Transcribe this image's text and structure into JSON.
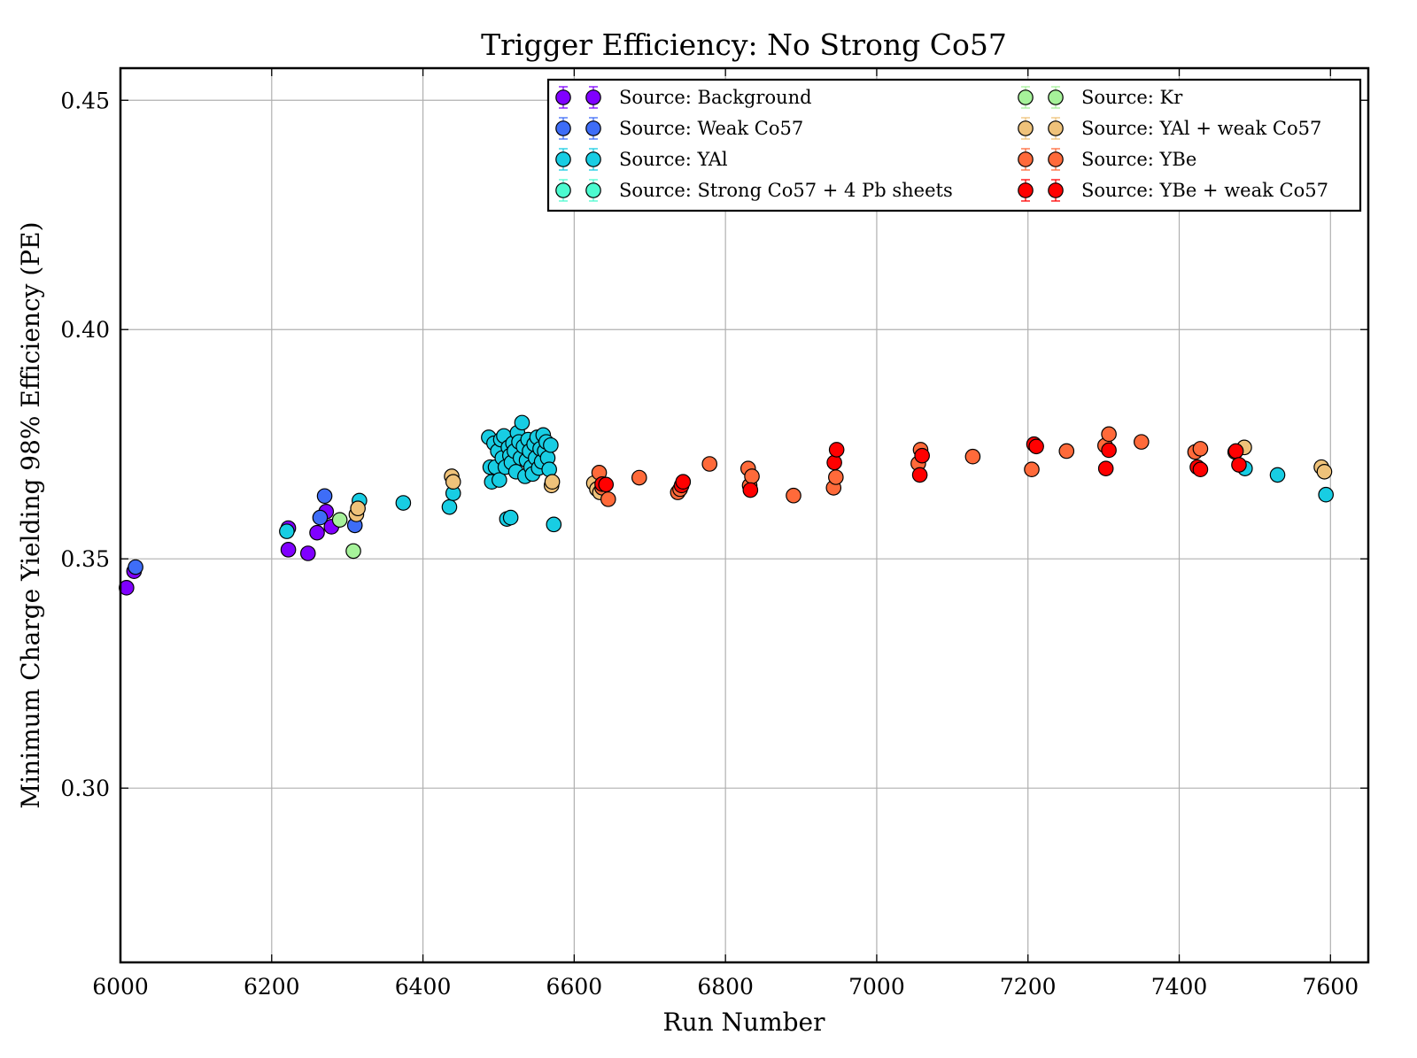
{
  "chart_data": {
    "type": "scatter",
    "title": "Trigger Efficiency: No Strong Co57",
    "xlabel": "Run Number",
    "ylabel": "Minimum Charge Yielding 98% Efficiency (PE)",
    "xlim": [
      6000,
      7650
    ],
    "ylim": [
      0.262,
      0.457
    ],
    "xticks": [
      "6000",
      "6200",
      "6400",
      "6600",
      "6800",
      "7000",
      "7200",
      "7400",
      "7600"
    ],
    "yticks": [
      "0.30",
      "0.35",
      "0.40",
      "0.45"
    ],
    "grid": true,
    "legend_position": "top-right",
    "legend_columns": 2,
    "series": [
      {
        "name": "Source: Background",
        "color": "#8000ff",
        "points": [
          [
            6008,
            0.3437
          ],
          [
            6018,
            0.3473
          ],
          [
            6222,
            0.352
          ],
          [
            6222,
            0.3567
          ],
          [
            6248,
            0.3512
          ],
          [
            6260,
            0.3557
          ],
          [
            6272,
            0.3603
          ],
          [
            6279,
            0.357
          ]
        ]
      },
      {
        "name": "Source: Weak Co57",
        "color": "#3e6df7",
        "points": [
          [
            6020,
            0.3482
          ],
          [
            6264,
            0.359
          ],
          [
            6270,
            0.3637
          ],
          [
            6310,
            0.3573
          ]
        ]
      },
      {
        "name": "Source: YAl",
        "color": "#18cde3",
        "points": [
          [
            6220,
            0.356
          ],
          [
            6316,
            0.3627
          ],
          [
            6374,
            0.3622
          ],
          [
            6435,
            0.3613
          ],
          [
            6440,
            0.3643
          ],
          [
            6487,
            0.3765
          ],
          [
            6489,
            0.37
          ],
          [
            6491,
            0.3668
          ],
          [
            6494,
            0.3752
          ],
          [
            6496,
            0.37
          ],
          [
            6499,
            0.3735
          ],
          [
            6501,
            0.3672
          ],
          [
            6503,
            0.376
          ],
          [
            6505,
            0.372
          ],
          [
            6507,
            0.3768
          ],
          [
            6509,
            0.37
          ],
          [
            6511,
            0.3587
          ],
          [
            6513,
            0.3743
          ],
          [
            6515,
            0.3725
          ],
          [
            6516,
            0.359
          ],
          [
            6517,
            0.371
          ],
          [
            6519,
            0.3752
          ],
          [
            6521,
            0.3735
          ],
          [
            6523,
            0.369
          ],
          [
            6525,
            0.3775
          ],
          [
            6527,
            0.3755
          ],
          [
            6529,
            0.372
          ],
          [
            6531,
            0.3797
          ],
          [
            6533,
            0.3745
          ],
          [
            6535,
            0.368
          ],
          [
            6537,
            0.3715
          ],
          [
            6539,
            0.376
          ],
          [
            6541,
            0.3735
          ],
          [
            6543,
            0.37
          ],
          [
            6545,
            0.3685
          ],
          [
            6547,
            0.375
          ],
          [
            6549,
            0.372
          ],
          [
            6551,
            0.3765
          ],
          [
            6553,
            0.3698
          ],
          [
            6555,
            0.374
          ],
          [
            6557,
            0.3712
          ],
          [
            6559,
            0.377
          ],
          [
            6561,
            0.3735
          ],
          [
            6563,
            0.3755
          ],
          [
            6565,
            0.372
          ],
          [
            6567,
            0.3695
          ],
          [
            6569,
            0.3748
          ],
          [
            6573,
            0.3575
          ],
          [
            7487,
            0.3697
          ],
          [
            7530,
            0.3683
          ],
          [
            7594,
            0.364
          ]
        ]
      },
      {
        "name": "Source: Strong Co57 + 4 Pb sheets",
        "color": "#4cfbcf",
        "points": []
      },
      {
        "name": "Source: Kr",
        "color": "#a6f29a",
        "points": [
          [
            6290,
            0.3585
          ],
          [
            6308,
            0.3517
          ]
        ]
      },
      {
        "name": "Source: YAl + weak Co57",
        "color": "#efc27a",
        "points": [
          [
            6312,
            0.3597
          ],
          [
            6314,
            0.361
          ],
          [
            6438,
            0.368
          ],
          [
            6440,
            0.3668
          ],
          [
            6570,
            0.366
          ],
          [
            6571,
            0.3668
          ],
          [
            6626,
            0.3665
          ],
          [
            6630,
            0.3652
          ],
          [
            6634,
            0.3645
          ],
          [
            7474,
            0.3733
          ],
          [
            7486,
            0.3743
          ],
          [
            7588,
            0.37
          ],
          [
            7592,
            0.369
          ]
        ]
      },
      {
        "name": "Source: YBe",
        "color": "#ff6a3a",
        "points": [
          [
            6633,
            0.3688
          ],
          [
            6637,
            0.3655
          ],
          [
            6645,
            0.363
          ],
          [
            6686,
            0.3677
          ],
          [
            6737,
            0.3645
          ],
          [
            6740,
            0.3652
          ],
          [
            6779,
            0.3707
          ],
          [
            6830,
            0.3697
          ],
          [
            6832,
            0.366
          ],
          [
            6835,
            0.368
          ],
          [
            6890,
            0.3638
          ],
          [
            6943,
            0.3655
          ],
          [
            6946,
            0.3678
          ],
          [
            7055,
            0.3708
          ],
          [
            7058,
            0.3738
          ],
          [
            7127,
            0.3723
          ],
          [
            7205,
            0.3695
          ],
          [
            7251,
            0.3735
          ],
          [
            7302,
            0.3747
          ],
          [
            7307,
            0.3772
          ],
          [
            7350,
            0.3755
          ],
          [
            7421,
            0.3733
          ],
          [
            7428,
            0.374
          ]
        ]
      },
      {
        "name": "Source: YBe + weak Co57",
        "color": "#ff0000",
        "points": [
          [
            6637,
            0.3663
          ],
          [
            6642,
            0.3662
          ],
          [
            6742,
            0.366
          ],
          [
            6744,
            0.3668
          ],
          [
            6833,
            0.365
          ],
          [
            6944,
            0.371
          ],
          [
            6947,
            0.3738
          ],
          [
            7057,
            0.3683
          ],
          [
            7060,
            0.3725
          ],
          [
            7208,
            0.375
          ],
          [
            7211,
            0.3745
          ],
          [
            7303,
            0.3697
          ],
          [
            7307,
            0.3737
          ],
          [
            7424,
            0.37
          ],
          [
            7428,
            0.3695
          ],
          [
            7475,
            0.3735
          ],
          [
            7479,
            0.3705
          ]
        ]
      }
    ]
  }
}
